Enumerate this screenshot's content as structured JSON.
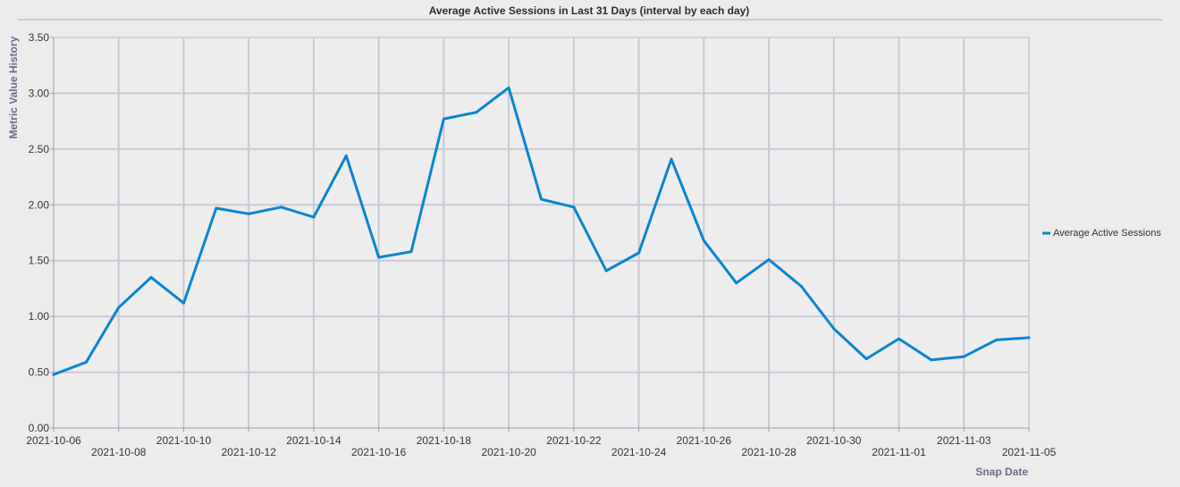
{
  "chart_data": {
    "type": "line",
    "title": "Average Active Sessions in Last 31 Days (interval by each day)",
    "xlabel": "Snap Date",
    "ylabel": "Metric Value History",
    "ylim": [
      0,
      3.5
    ],
    "yticks": [
      "0.00",
      "0.50",
      "1.00",
      "1.50",
      "2.00",
      "2.50",
      "3.00",
      "3.50"
    ],
    "xtick_labels": [
      "2021-10-06",
      "2021-10-08",
      "2021-10-10",
      "2021-10-12",
      "2021-10-14",
      "2021-10-16",
      "2021-10-18",
      "2021-10-20",
      "2021-10-22",
      "2021-10-24",
      "2021-10-26",
      "2021-10-28",
      "2021-10-30",
      "2021-11-01",
      "2021-11-03",
      "2021-11-05"
    ],
    "grid": true,
    "legend_position": "right",
    "x": [
      "2021-10-06",
      "2021-10-07",
      "2021-10-08",
      "2021-10-09",
      "2021-10-10",
      "2021-10-11",
      "2021-10-12",
      "2021-10-13",
      "2021-10-14",
      "2021-10-15",
      "2021-10-16",
      "2021-10-17",
      "2021-10-18",
      "2021-10-19",
      "2021-10-20",
      "2021-10-21",
      "2021-10-22",
      "2021-10-23",
      "2021-10-24",
      "2021-10-25",
      "2021-10-26",
      "2021-10-27",
      "2021-10-28",
      "2021-10-29",
      "2021-10-30",
      "2021-10-31",
      "2021-11-01",
      "2021-11-02",
      "2021-11-03",
      "2021-11-04",
      "2021-11-05"
    ],
    "series": [
      {
        "name": "Average Active Sessions",
        "color": "#0a84d0",
        "values": [
          0.48,
          0.59,
          1.08,
          1.35,
          1.12,
          1.97,
          1.92,
          1.98,
          1.89,
          2.44,
          1.53,
          1.58,
          2.77,
          2.83,
          3.05,
          2.05,
          1.98,
          1.41,
          1.57,
          2.41,
          1.68,
          1.3,
          1.51,
          1.27,
          0.89,
          0.62,
          0.8,
          0.61,
          0.64,
          0.79,
          0.81
        ]
      }
    ]
  }
}
